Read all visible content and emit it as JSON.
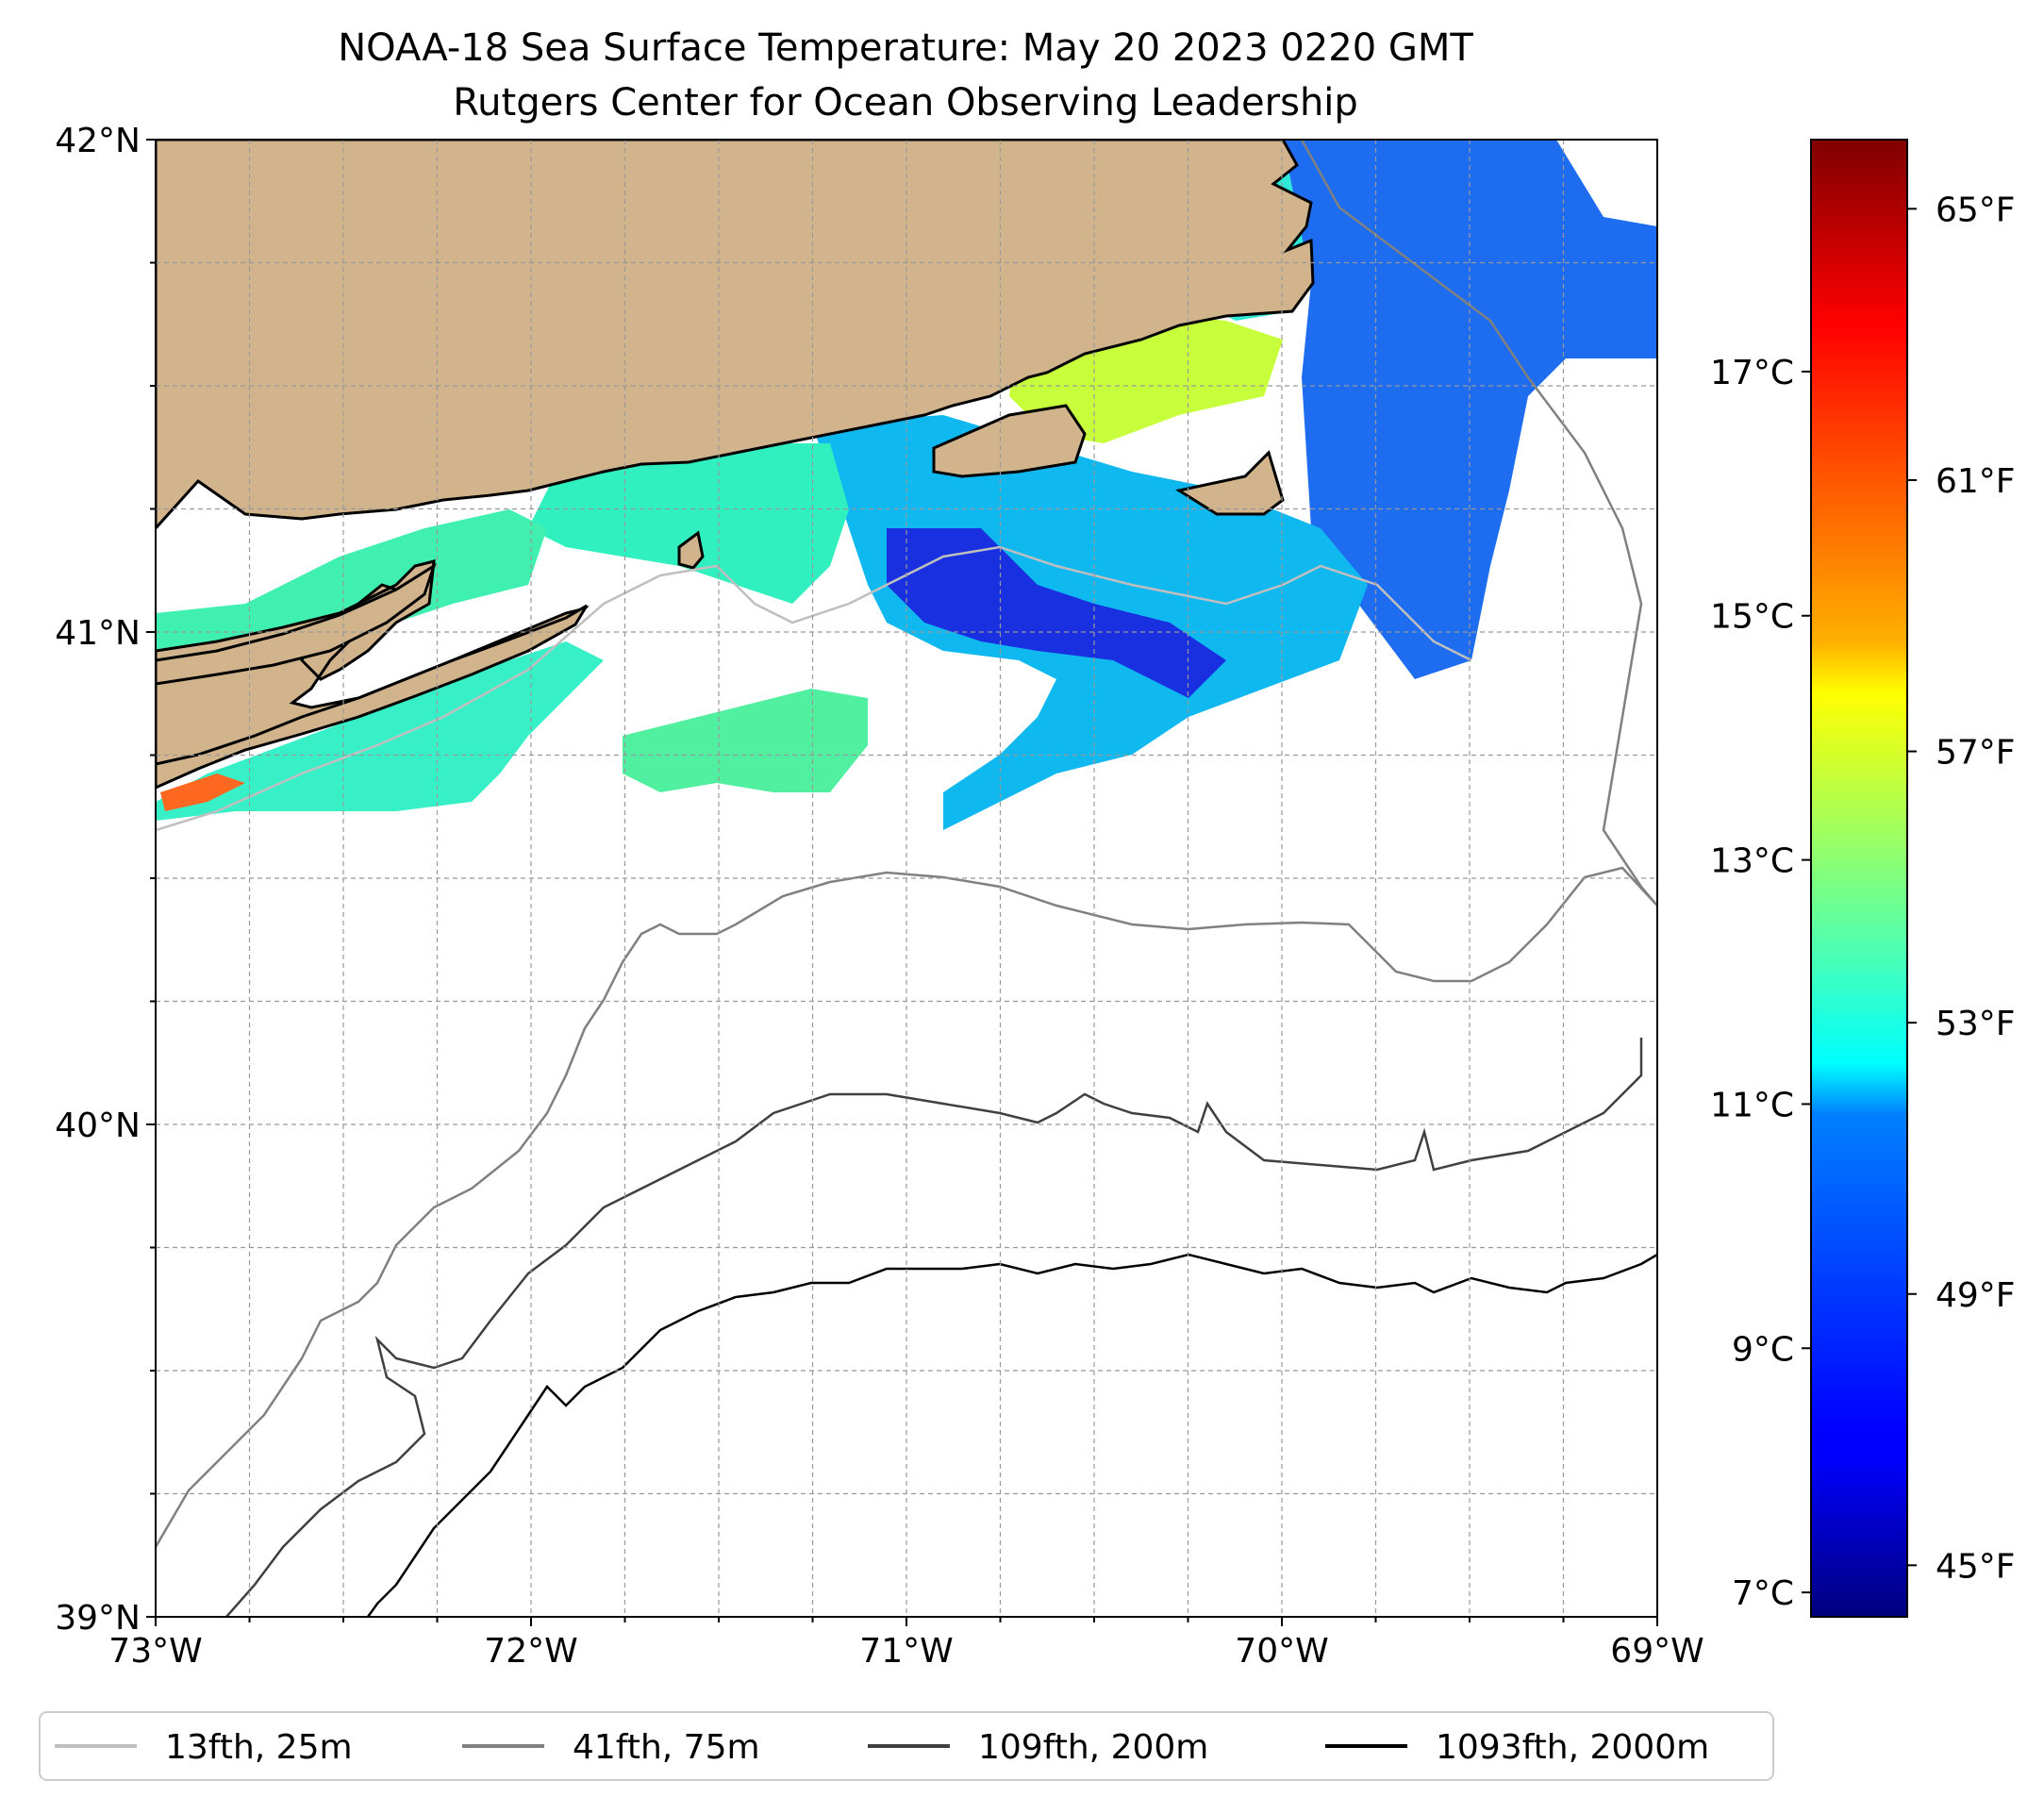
{
  "title": {
    "line1": "NOAA-18 Sea Surface Temperature: May 20 2023 0220 GMT",
    "line2": "Rutgers Center for Ocean Observing Leadership"
  },
  "map": {
    "lon_range": [
      -73,
      -69
    ],
    "lat_range": [
      39,
      42
    ],
    "lon_ticks": [
      {
        "value": -73,
        "label": "73°W"
      },
      {
        "value": -72,
        "label": "72°W"
      },
      {
        "value": -71,
        "label": "71°W"
      },
      {
        "value": -70,
        "label": "70°W"
      },
      {
        "value": -69,
        "label": "69°W"
      }
    ],
    "lat_ticks": [
      {
        "value": 42,
        "label": "42°N"
      },
      {
        "value": 41,
        "label": "41°N"
      },
      {
        "value": 40,
        "label": "40°N"
      },
      {
        "value": 39,
        "label": "39°N"
      }
    ],
    "land_color": "#d2b48c",
    "coast_color": "#000000"
  },
  "colorbar": {
    "cmap": "jet",
    "range_c": [
      6.8,
      18.9
    ],
    "c_ticks": [
      {
        "value": 7,
        "label": "7°C"
      },
      {
        "value": 9,
        "label": "9°C"
      },
      {
        "value": 11,
        "label": "11°C"
      },
      {
        "value": 13,
        "label": "13°C"
      },
      {
        "value": 15,
        "label": "15°C"
      },
      {
        "value": 17,
        "label": "17°C"
      }
    ],
    "f_ticks": [
      {
        "value": 45,
        "label": "45°F"
      },
      {
        "value": 49,
        "label": "49°F"
      },
      {
        "value": 53,
        "label": "53°F"
      },
      {
        "value": 57,
        "label": "57°F"
      },
      {
        "value": 61,
        "label": "61°F"
      },
      {
        "value": 65,
        "label": "65°F"
      }
    ]
  },
  "legend": {
    "items": [
      {
        "label": "13fth, 25m",
        "color": "#bfbfbf"
      },
      {
        "label": "41fth, 75m",
        "color": "#808080"
      },
      {
        "label": "109fth, 200m",
        "color": "#404040"
      },
      {
        "label": "1093fth, 2000m",
        "color": "#000000"
      }
    ]
  }
}
